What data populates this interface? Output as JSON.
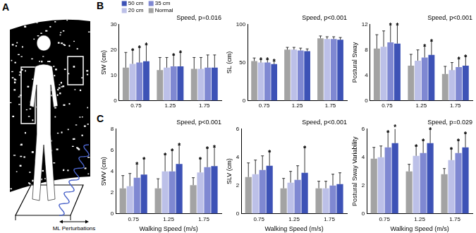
{
  "figure": {
    "panels": [
      {
        "label": "A",
        "annotation": "ML Perturbations"
      },
      {
        "label": "B"
      },
      {
        "label": "C"
      }
    ]
  },
  "chart_data": [
    {
      "type": "bar",
      "title": "Speed, p=0.016",
      "ylabel": "SW (cm)",
      "categories": [
        "0.75",
        "1.25",
        "1.75"
      ],
      "ylim": [
        0,
        30
      ],
      "yticks": [
        0,
        10,
        20,
        30
      ],
      "grid": false,
      "legend": "upper left",
      "series": [
        {
          "name": "Normal",
          "color": "#a3a3a3",
          "values": [
            13,
            12,
            12.5
          ],
          "errors": [
            6,
            5,
            4.5
          ],
          "significance": [
            null,
            null,
            null
          ]
        },
        {
          "name": "20 cm",
          "color": "#bcc0e8",
          "values": [
            14.5,
            13,
            12.5
          ],
          "errors": [
            5.5,
            4,
            4.5
          ],
          "significance": [
            "*",
            null,
            null
          ]
        },
        {
          "name": "35 cm",
          "color": "#7f88d2",
          "values": [
            15,
            13.5,
            13
          ],
          "errors": [
            6,
            4.5,
            5
          ],
          "significance": [
            "*",
            "*",
            null
          ]
        },
        {
          "name": "50 cm",
          "color": "#3d52b6",
          "values": [
            15.5,
            13.5,
            13
          ],
          "errors": [
            6.5,
            5.5,
            5
          ],
          "significance": [
            "*",
            "*",
            null
          ]
        }
      ]
    },
    {
      "type": "bar",
      "title": "Speed, p<0.001",
      "ylabel": "SL (cm)",
      "categories": [
        "0.75",
        "1.25",
        "1.75"
      ],
      "ylim": [
        0,
        100
      ],
      "yticks": [
        0,
        50,
        100
      ],
      "grid": false,
      "series": [
        {
          "name": "Normal",
          "color": "#a3a3a3",
          "values": [
            52,
            67,
            82
          ],
          "errors": [
            4,
            3,
            3
          ],
          "significance": [
            null,
            null,
            null
          ]
        },
        {
          "name": "20 cm",
          "color": "#bcc0e8",
          "values": [
            50,
            67,
            81
          ],
          "errors": [
            4,
            3,
            3
          ],
          "significance": [
            "*",
            null,
            null
          ]
        },
        {
          "name": "35 cm",
          "color": "#7f88d2",
          "values": [
            50,
            66,
            81
          ],
          "errors": [
            4,
            3,
            3
          ],
          "significance": [
            "*",
            null,
            null
          ]
        },
        {
          "name": "50 cm",
          "color": "#3d52b6",
          "values": [
            48,
            65,
            80
          ],
          "errors": [
            4,
            3,
            3
          ],
          "significance": [
            "*",
            null,
            null
          ]
        }
      ]
    },
    {
      "type": "bar",
      "title": "Speed, p<0.001",
      "ylabel": "Postural Sway",
      "categories": [
        "0.75",
        "1.25",
        "1.75"
      ],
      "ylim": [
        0,
        12
      ],
      "yticks": [
        0,
        4,
        8,
        12
      ],
      "grid": false,
      "series": [
        {
          "name": "Normal",
          "color": "#a3a3a3",
          "values": [
            8.2,
            5.5,
            4.2
          ],
          "errors": [
            2.2,
            1.8,
            1.2
          ],
          "significance": [
            null,
            null,
            null
          ]
        },
        {
          "name": "20 cm",
          "color": "#bcc0e8",
          "values": [
            8.5,
            6.3,
            4.8
          ],
          "errors": [
            2.5,
            1.7,
            1.2
          ],
          "significance": [
            null,
            null,
            null
          ]
        },
        {
          "name": "35 cm",
          "color": "#7f88d2",
          "values": [
            9.2,
            6.8,
            5.3
          ],
          "errors": [
            2.8,
            1.8,
            1.3
          ],
          "significance": [
            "*",
            "*",
            "*"
          ]
        },
        {
          "name": "50 cm",
          "color": "#3d52b6",
          "values": [
            9,
            7.2,
            5.5
          ],
          "errors": [
            3,
            2.2,
            1.5
          ],
          "significance": [
            "*",
            "*",
            "*"
          ]
        }
      ]
    },
    {
      "type": "bar",
      "title": "Speed, p<0.001",
      "ylabel": "SWV (cm)",
      "xlabel": "Walking Speed (m/s)",
      "categories": [
        "0.75",
        "1.25",
        "1.75"
      ],
      "ylim": [
        0,
        8
      ],
      "yticks": [
        0,
        2,
        4,
        6,
        8
      ],
      "grid": false,
      "series": [
        {
          "name": "Normal",
          "color": "#a3a3a3",
          "values": [
            2.4,
            2.4,
            2.7
          ],
          "errors": [
            1.2,
            0.9,
            0.7
          ],
          "significance": [
            null,
            null,
            null
          ]
        },
        {
          "name": "20 cm",
          "color": "#bcc0e8",
          "values": [
            2.6,
            4.0,
            3.9
          ],
          "errors": [
            1.2,
            1.6,
            1.3
          ],
          "significance": [
            null,
            "*",
            "*"
          ]
        },
        {
          "name": "35 cm",
          "color": "#7f88d2",
          "values": [
            3.4,
            4.0,
            4.4
          ],
          "errors": [
            1.3,
            2.0,
            1.8
          ],
          "significance": [
            "*",
            "*",
            "*"
          ]
        },
        {
          "name": "50 cm",
          "color": "#3d52b6",
          "values": [
            3.7,
            4.7,
            4.5
          ],
          "errors": [
            1.5,
            1.8,
            1.8
          ],
          "significance": [
            "*",
            "*",
            "*"
          ]
        }
      ]
    },
    {
      "type": "bar",
      "title": "Speed, p<0.001",
      "ylabel": "SLV (cm)",
      "xlabel": "Walking Speed (m/s)",
      "categories": [
        "0.75",
        "1.25",
        "1.75"
      ],
      "ylim": [
        0,
        6
      ],
      "yticks": [
        0,
        2,
        4,
        6
      ],
      "grid": false,
      "series": [
        {
          "name": "Normal",
          "color": "#a3a3a3",
          "values": [
            2.6,
            1.8,
            1.8
          ],
          "errors": [
            1,
            0.7,
            0.5
          ],
          "significance": [
            null,
            null,
            null
          ]
        },
        {
          "name": "20 cm",
          "color": "#bcc0e8",
          "values": [
            2.8,
            2.2,
            1.8
          ],
          "errors": [
            1,
            0.8,
            0.5
          ],
          "significance": [
            null,
            null,
            null
          ]
        },
        {
          "name": "35 cm",
          "color": "#7f88d2",
          "values": [
            3.1,
            2.4,
            2.0
          ],
          "errors": [
            1,
            1,
            0.8
          ],
          "significance": [
            null,
            null,
            null
          ]
        },
        {
          "name": "50 cm",
          "color": "#3d52b6",
          "values": [
            3.4,
            2.9,
            2.1
          ],
          "errors": [
            1,
            1.8,
            0.8
          ],
          "significance": [
            "*",
            "*",
            null
          ]
        }
      ]
    },
    {
      "type": "bar",
      "title": "Speed, p=0.029",
      "ylabel": "Postural Sway Variability",
      "xlabel": "Walking Speed (m/s)",
      "categories": [
        "0.75",
        "1.25",
        "1.75"
      ],
      "ylim": [
        0,
        6
      ],
      "yticks": [
        0,
        2,
        4,
        6
      ],
      "grid": false,
      "series": [
        {
          "name": "Normal",
          "color": "#a3a3a3",
          "values": [
            3.9,
            3.0,
            2.8
          ],
          "errors": [
            0.8,
            0.5,
            0.4
          ],
          "significance": [
            null,
            null,
            null
          ]
        },
        {
          "name": "20 cm",
          "color": "#bcc0e8",
          "values": [
            4.0,
            4.1,
            3.8
          ],
          "errors": [
            0.8,
            0.7,
            0.8
          ],
          "significance": [
            null,
            "*",
            "*"
          ]
        },
        {
          "name": "35 cm",
          "color": "#7f88d2",
          "values": [
            4.7,
            4.3,
            4.3
          ],
          "errors": [
            1.1,
            0.9,
            0.9
          ],
          "significance": [
            "*",
            "*",
            "*"
          ]
        },
        {
          "name": "50 cm",
          "color": "#3d52b6",
          "values": [
            5.0,
            5.0,
            4.7
          ],
          "errors": [
            1.2,
            1.0,
            1.0
          ],
          "significance": [
            "*",
            "*",
            "*"
          ]
        }
      ]
    }
  ]
}
